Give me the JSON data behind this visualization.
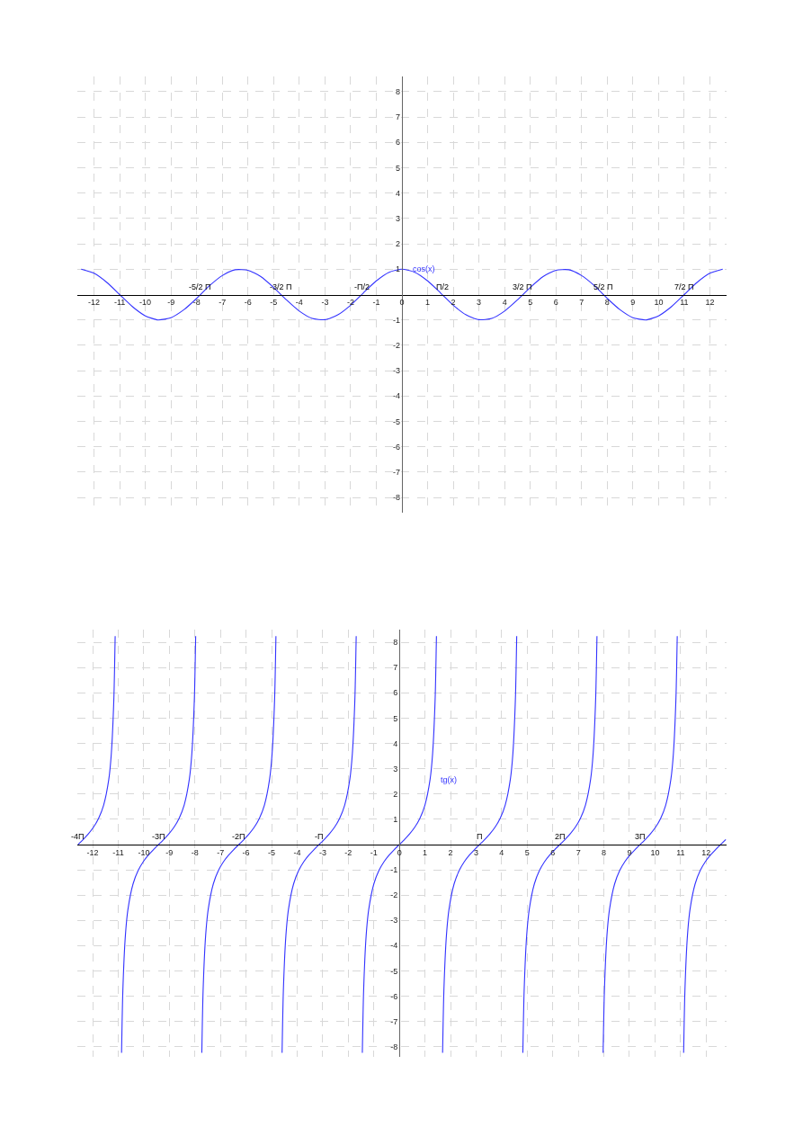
{
  "chart_data": [
    {
      "type": "line",
      "xlim": [
        -12.65,
        12.65
      ],
      "ylim": [
        -8.6,
        8.6
      ],
      "xticks": [
        -12,
        -11,
        -10,
        -9,
        -8,
        -7,
        -6,
        -5,
        -4,
        -3,
        -2,
        -1,
        0,
        1,
        2,
        3,
        4,
        5,
        6,
        7,
        8,
        9,
        10,
        11,
        12
      ],
      "yticks": [
        -8,
        -7,
        -6,
        -5,
        -4,
        -3,
        -2,
        -1,
        1,
        2,
        3,
        4,
        5,
        6,
        7,
        8
      ],
      "grid": true,
      "legend": false,
      "marker": "none",
      "line_style": "solid",
      "series": [
        {
          "name": "cos(x)",
          "color": "#3333ff",
          "x": [
            -12.5,
            -12,
            -11.5,
            -11,
            -10.5,
            -10,
            -9.5,
            -9,
            -8.5,
            -8,
            -7.5,
            -7,
            -6.5,
            -6,
            -5.5,
            -5,
            -4.5,
            -4,
            -3.5,
            -3,
            -2.5,
            -2,
            -1.5,
            -1,
            -0.5,
            0,
            0.5,
            1,
            1.5,
            2,
            2.5,
            3,
            3.5,
            4,
            4.5,
            5,
            5.5,
            6,
            6.5,
            7,
            7.5,
            8,
            8.5,
            9,
            9.5,
            10,
            10.5,
            11,
            11.5,
            12,
            12.5
          ],
          "values": [
            1.0,
            0.84,
            0.48,
            0.0,
            -0.48,
            -0.84,
            -1.0,
            -0.91,
            -0.6,
            -0.15,
            0.35,
            0.75,
            0.98,
            0.96,
            0.71,
            0.28,
            -0.21,
            -0.65,
            -0.94,
            -0.99,
            -0.8,
            -0.42,
            0.07,
            0.54,
            0.88,
            1.0,
            0.88,
            0.54,
            0.07,
            -0.42,
            -0.8,
            -0.99,
            -0.94,
            -0.65,
            -0.21,
            0.28,
            0.71,
            0.96,
            0.98,
            0.75,
            0.35,
            -0.15,
            -0.6,
            -0.91,
            -1.0,
            -0.84,
            -0.48,
            0.0,
            0.48,
            0.84,
            1.0
          ]
        }
      ],
      "annotations": [
        {
          "text": "-5/2 Π",
          "x": -7.85,
          "y": 0
        },
        {
          "text": "-3/2 Π",
          "x": -4.71,
          "y": 0
        },
        {
          "text": "-Π/2",
          "x": -1.57,
          "y": 0
        },
        {
          "text": "Π/2",
          "x": 1.57,
          "y": 0
        },
        {
          "text": "3/2 Π",
          "x": 4.71,
          "y": 0
        },
        {
          "text": "5/2 Π",
          "x": 7.85,
          "y": 0
        },
        {
          "text": "7/2 Π",
          "x": 11.0,
          "y": 0
        }
      ]
    },
    {
      "type": "line",
      "xlim": [
        -12.6,
        12.8
      ],
      "ylim": [
        -8.4,
        8.5
      ],
      "xticks": [
        -12,
        -11,
        -10,
        -9,
        -8,
        -7,
        -6,
        -5,
        -4,
        -3,
        -2,
        -1,
        0,
        1,
        2,
        3,
        4,
        5,
        6,
        7,
        8,
        9,
        10,
        11,
        12
      ],
      "yticks": [
        -8,
        -7,
        -6,
        -5,
        -4,
        -3,
        -2,
        -1,
        1,
        2,
        3,
        4,
        5,
        6,
        7,
        8
      ],
      "grid": true,
      "legend": false,
      "marker": "none",
      "line_style": "solid",
      "series": [
        {
          "color": "#3333ff",
          "x": [
            -12.57,
            -12.37,
            -12.17,
            -11.97,
            -11.77,
            -11.57,
            -11.37,
            -11.27,
            -11.17,
            -11.12
          ],
          "values": [
            0,
            0.2,
            0.42,
            0.68,
            1.03,
            1.56,
            2.57,
            3.6,
            5.8,
            8.24
          ]
        },
        {
          "color": "#3333ff",
          "x": [
            -10.87,
            -10.82,
            -10.72,
            -10.62,
            -10.42,
            -10.22,
            -10.02,
            -9.82,
            -9.62,
            -9.42,
            -9.22,
            -9.02,
            -8.82,
            -8.62,
            -8.42,
            -8.22,
            -8.12,
            -8.02,
            -7.97
          ],
          "values": [
            -8.24,
            -5.8,
            -3.6,
            -2.57,
            -1.56,
            -1.03,
            -0.68,
            -0.42,
            -0.2,
            0,
            0.2,
            0.42,
            0.68,
            1.03,
            1.56,
            2.57,
            3.6,
            5.8,
            8.24
          ]
        },
        {
          "color": "#3333ff",
          "x": [
            -7.73,
            -7.68,
            -7.58,
            -7.48,
            -7.28,
            -7.08,
            -6.88,
            -6.68,
            -6.48,
            -6.28,
            -6.08,
            -5.88,
            -5.68,
            -5.48,
            -5.28,
            -5.08,
            -4.98,
            -4.88,
            -4.83
          ],
          "values": [
            -8.24,
            -5.8,
            -3.6,
            -2.57,
            -1.56,
            -1.03,
            -0.68,
            -0.42,
            -0.2,
            0,
            0.2,
            0.42,
            0.68,
            1.03,
            1.56,
            2.57,
            3.6,
            5.8,
            8.24
          ]
        },
        {
          "color": "#3333ff",
          "x": [
            -4.59,
            -4.54,
            -4.44,
            -4.34,
            -4.14,
            -3.94,
            -3.74,
            -3.54,
            -3.34,
            -3.14,
            -2.94,
            -2.74,
            -2.54,
            -2.34,
            -2.14,
            -1.94,
            -1.84,
            -1.74,
            -1.69
          ],
          "values": [
            -8.24,
            -5.8,
            -3.6,
            -2.57,
            -1.56,
            -1.03,
            -0.68,
            -0.42,
            -0.2,
            0,
            0.2,
            0.42,
            0.68,
            1.03,
            1.56,
            2.57,
            3.6,
            5.8,
            8.24
          ]
        },
        {
          "name": "tg(x)",
          "color": "#3333ff",
          "x": [
            -1.45,
            -1.4,
            -1.3,
            -1.2,
            -1,
            -0.8,
            -0.6,
            -0.4,
            -0.2,
            0,
            0.2,
            0.4,
            0.6,
            0.8,
            1,
            1.2,
            1.3,
            1.4,
            1.45
          ],
          "values": [
            -8.24,
            -5.8,
            -3.6,
            -2.57,
            -1.56,
            -1.03,
            -0.68,
            -0.42,
            -0.2,
            0,
            0.2,
            0.42,
            0.68,
            1.03,
            1.56,
            2.57,
            3.6,
            5.8,
            8.24
          ]
        },
        {
          "color": "#3333ff",
          "x": [
            1.69,
            1.74,
            1.84,
            1.94,
            2.14,
            2.34,
            2.54,
            2.74,
            2.94,
            3.14,
            3.34,
            3.54,
            3.74,
            3.94,
            4.14,
            4.34,
            4.44,
            4.54,
            4.59
          ],
          "values": [
            -8.24,
            -5.8,
            -3.6,
            -2.57,
            -1.56,
            -1.03,
            -0.68,
            -0.42,
            -0.2,
            0,
            0.2,
            0.42,
            0.68,
            1.03,
            1.56,
            2.57,
            3.6,
            5.8,
            8.24
          ]
        },
        {
          "color": "#3333ff",
          "x": [
            4.83,
            4.88,
            4.98,
            5.08,
            5.28,
            5.48,
            5.68,
            5.88,
            6.08,
            6.28,
            6.48,
            6.68,
            6.88,
            7.08,
            7.28,
            7.48,
            7.58,
            7.68,
            7.73
          ],
          "values": [
            -8.24,
            -5.8,
            -3.6,
            -2.57,
            -1.56,
            -1.03,
            -0.68,
            -0.42,
            -0.2,
            0,
            0.2,
            0.42,
            0.68,
            1.03,
            1.56,
            2.57,
            3.6,
            5.8,
            8.24
          ]
        },
        {
          "color": "#3333ff",
          "x": [
            7.97,
            8.02,
            8.12,
            8.22,
            8.42,
            8.62,
            8.82,
            9.02,
            9.22,
            9.42,
            9.62,
            9.82,
            10.02,
            10.22,
            10.42,
            10.62,
            10.72,
            10.82,
            10.87
          ],
          "values": [
            -8.24,
            -5.8,
            -3.6,
            -2.57,
            -1.56,
            -1.03,
            -0.68,
            -0.42,
            -0.2,
            0,
            0.2,
            0.42,
            0.68,
            1.03,
            1.56,
            2.57,
            3.6,
            5.8,
            8.24
          ]
        },
        {
          "color": "#3333ff",
          "x": [
            11.12,
            11.17,
            11.27,
            11.37,
            11.57,
            11.77,
            11.97,
            12.17,
            12.37,
            12.57,
            12.77
          ],
          "values": [
            -8.24,
            -5.8,
            -3.6,
            -2.57,
            -1.56,
            -1.03,
            -0.68,
            -0.42,
            -0.2,
            0,
            0.2
          ]
        }
      ],
      "annotations": [
        {
          "text": "-4Π",
          "x": -12.57,
          "y": 0
        },
        {
          "text": "-3Π",
          "x": -9.42,
          "y": 0
        },
        {
          "text": "-2Π",
          "x": -6.28,
          "y": 0
        },
        {
          "text": "-Π",
          "x": -3.14,
          "y": 0
        },
        {
          "text": "Π",
          "x": 3.14,
          "y": 0
        },
        {
          "text": "2Π",
          "x": 6.28,
          "y": 0
        },
        {
          "text": "3Π",
          "x": 9.42,
          "y": 0
        }
      ]
    }
  ]
}
